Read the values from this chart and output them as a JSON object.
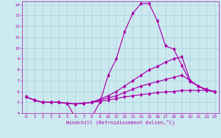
{
  "background_color": "#cce9f0",
  "grid_color": "#aad4dc",
  "line_color": "#aa00aa",
  "xlabel": "Windchill (Refroidissement éolien,°C)",
  "xlim": [
    -0.5,
    23.5
  ],
  "ylim": [
    4,
    14.3
  ],
  "xticks": [
    0,
    1,
    2,
    3,
    4,
    5,
    6,
    7,
    8,
    9,
    10,
    11,
    12,
    13,
    14,
    15,
    16,
    17,
    18,
    19,
    20,
    21,
    22,
    23
  ],
  "yticks": [
    4,
    5,
    6,
    7,
    8,
    9,
    10,
    11,
    12,
    13,
    14
  ],
  "line1_x": [
    0,
    1,
    2,
    3,
    4,
    5,
    6,
    7,
    8,
    9,
    10,
    11,
    12,
    13,
    14,
    15,
    16,
    17,
    18,
    19,
    20,
    21,
    22,
    23
  ],
  "line1_y": [
    5.5,
    5.2,
    5.0,
    5.0,
    5.0,
    4.9,
    3.6,
    3.7,
    3.65,
    5.0,
    7.5,
    9.0,
    11.5,
    13.2,
    14.1,
    14.1,
    12.5,
    10.2,
    9.9,
    8.4,
    6.9,
    6.5,
    6.1,
    6.0
  ],
  "line2_x": [
    0,
    1,
    2,
    3,
    4,
    5,
    6,
    7,
    8,
    9,
    10,
    11,
    12,
    13,
    14,
    15,
    16,
    17,
    18,
    19,
    20,
    21,
    22,
    23
  ],
  "line2_y": [
    5.5,
    5.2,
    5.0,
    5.0,
    5.0,
    4.9,
    4.85,
    4.9,
    5.0,
    5.3,
    5.6,
    6.0,
    6.5,
    7.0,
    7.5,
    8.0,
    8.3,
    8.7,
    9.0,
    9.2,
    7.0,
    6.5,
    6.1,
    6.0
  ],
  "line3_x": [
    0,
    1,
    2,
    3,
    4,
    5,
    6,
    7,
    8,
    9,
    10,
    11,
    12,
    13,
    14,
    15,
    16,
    17,
    18,
    19,
    20,
    21,
    22,
    23
  ],
  "line3_y": [
    5.5,
    5.2,
    5.0,
    5.0,
    5.0,
    4.9,
    4.85,
    4.9,
    5.0,
    5.2,
    5.4,
    5.6,
    5.9,
    6.2,
    6.5,
    6.7,
    6.9,
    7.1,
    7.3,
    7.5,
    7.0,
    6.5,
    6.2,
    6.0
  ],
  "line4_x": [
    0,
    1,
    2,
    3,
    4,
    5,
    6,
    7,
    8,
    9,
    10,
    11,
    12,
    13,
    14,
    15,
    16,
    17,
    18,
    19,
    20,
    21,
    22,
    23
  ],
  "line4_y": [
    5.5,
    5.2,
    5.0,
    5.0,
    5.0,
    4.9,
    4.85,
    4.9,
    5.0,
    5.1,
    5.2,
    5.35,
    5.5,
    5.6,
    5.7,
    5.8,
    5.9,
    5.95,
    6.0,
    6.1,
    6.1,
    6.1,
    6.1,
    6.0
  ]
}
